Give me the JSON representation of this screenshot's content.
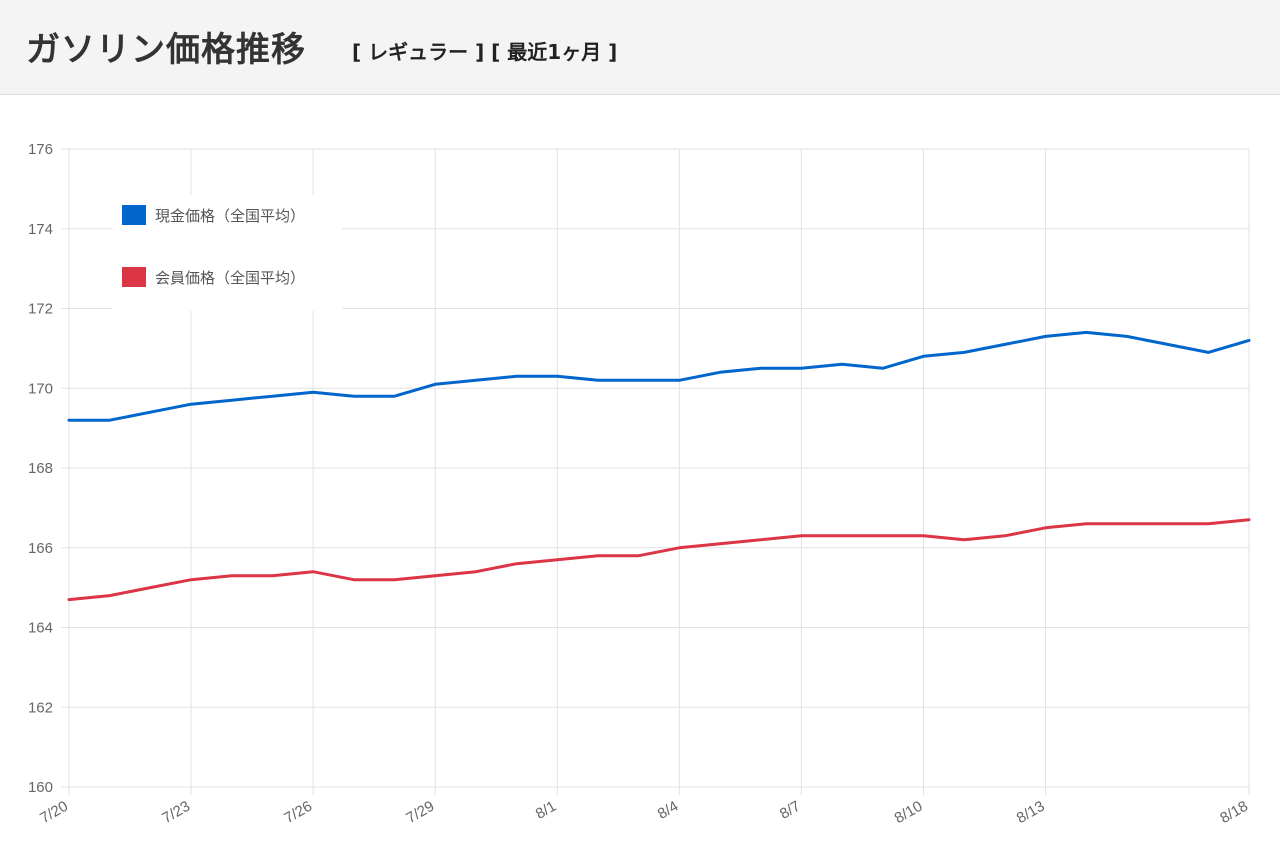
{
  "header": {
    "title": "ガソリン価格推移",
    "subtitle": "[ レギュラー ] [ 最近1ヶ月 ]"
  },
  "chart_data": {
    "type": "line",
    "x": [
      "7/20",
      "7/21",
      "7/22",
      "7/23",
      "7/24",
      "7/25",
      "7/26",
      "7/27",
      "7/28",
      "7/29",
      "7/30",
      "7/31",
      "8/1",
      "8/2",
      "8/3",
      "8/4",
      "8/5",
      "8/6",
      "8/7",
      "8/8",
      "8/9",
      "8/10",
      "8/11",
      "8/12",
      "8/13",
      "8/14",
      "8/15",
      "8/16",
      "8/17",
      "8/18"
    ],
    "x_tick_labels": [
      "7/20",
      "7/23",
      "7/26",
      "7/29",
      "8/1",
      "8/4",
      "8/7",
      "8/10",
      "8/13",
      "8/18"
    ],
    "y_tick_labels": [
      "176",
      "174",
      "172",
      "170",
      "168",
      "166",
      "164",
      "162",
      "160"
    ],
    "ylim": [
      160,
      176
    ],
    "grid": true,
    "legend_position": "top-left",
    "series": [
      {
        "name": "現金価格（全国平均）",
        "color": "#0066cc",
        "values": [
          169.2,
          169.2,
          169.4,
          169.6,
          169.7,
          169.8,
          169.9,
          169.8,
          169.8,
          170.1,
          170.2,
          170.3,
          170.3,
          170.2,
          170.2,
          170.2,
          170.4,
          170.5,
          170.5,
          170.6,
          170.5,
          170.8,
          170.9,
          171.1,
          171.3,
          171.4,
          171.3,
          171.1,
          170.9,
          171.2
        ]
      },
      {
        "name": "会員価格（全国平均）",
        "color": "#dc3545",
        "values": [
          164.7,
          164.8,
          165.0,
          165.2,
          165.3,
          165.3,
          165.4,
          165.2,
          165.2,
          165.3,
          165.4,
          165.6,
          165.7,
          165.8,
          165.8,
          166.0,
          166.1,
          166.2,
          166.3,
          166.3,
          166.3,
          166.3,
          166.2,
          166.3,
          166.5,
          166.6,
          166.6,
          166.6,
          166.6,
          166.7
        ]
      }
    ]
  }
}
